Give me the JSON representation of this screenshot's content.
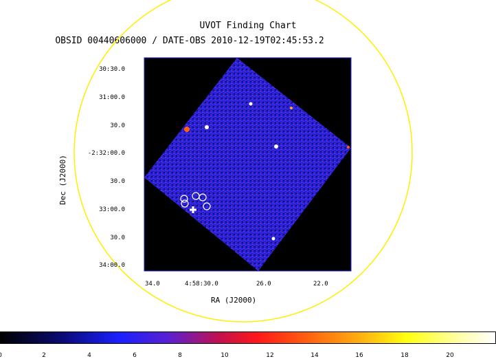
{
  "title": "UVOT Finding Chart",
  "subtitle": "OBSID 00440606000 / DATE-OBS 2010-12-19T02:45:53.2",
  "x_axis_label": "RA (J2000)",
  "y_axis_label": "Dec (J2000)",
  "y_ticks": [
    "30:30.0",
    "31:00.0",
    "30.0",
    "-2:32:00.0",
    "30.0",
    "33:00.0",
    "30.0",
    "34:00.0"
  ],
  "x_ticks": [
    "34.0",
    "4:58:30.0",
    "26.0",
    "22.0"
  ],
  "colorbar_ticks": [
    "0",
    "2",
    "4",
    "6",
    "8",
    "10",
    "12",
    "14",
    "16",
    "18",
    "20"
  ],
  "colors": {
    "field_circle": "#ffff00",
    "background": "#000000",
    "frame": "#2020d0",
    "markers": "#ffffff"
  }
}
